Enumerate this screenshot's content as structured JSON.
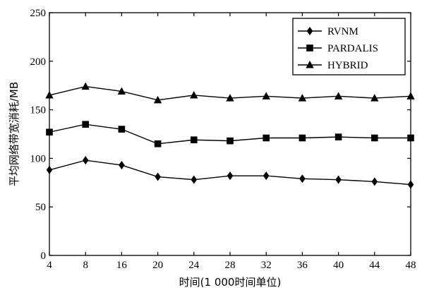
{
  "chart_data": {
    "type": "line",
    "title": "",
    "xlabel": "时间(1 000时间单位)",
    "ylabel": "平均网络带宽消耗/MB",
    "x": [
      4,
      8,
      16,
      20,
      24,
      28,
      32,
      36,
      40,
      44,
      48
    ],
    "x_tick_labels": [
      "4",
      "8",
      "16",
      "20",
      "24",
      "28",
      "32",
      "36",
      "40",
      "44",
      "48"
    ],
    "y_ticks": [
      0,
      50,
      100,
      150,
      200,
      250
    ],
    "ylim": [
      0,
      250
    ],
    "grid": false,
    "legend_position": "top-right",
    "series": [
      {
        "name": "RVNM",
        "marker": "diamond",
        "values": [
          88,
          98,
          93,
          81,
          78,
          82,
          82,
          79,
          78,
          76,
          73
        ]
      },
      {
        "name": "PARDALIS",
        "marker": "square",
        "values": [
          127,
          135,
          130,
          115,
          119,
          118,
          121,
          121,
          122,
          121,
          121
        ]
      },
      {
        "name": "HYBRID",
        "marker": "triangle",
        "values": [
          165,
          174,
          169,
          160,
          165,
          162,
          164,
          162,
          164,
          162,
          164
        ]
      }
    ]
  }
}
